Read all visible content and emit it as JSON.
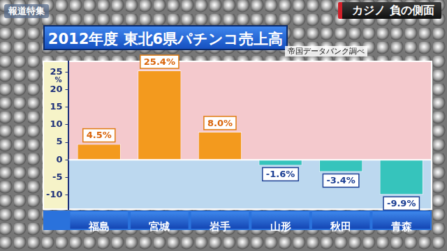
{
  "header": {
    "program": "報道特集",
    "segment": "カジノ 負の側面"
  },
  "chart_data": {
    "type": "bar",
    "title": "2012年度 東北6県パチンコ売上高",
    "source": "帝国データバンク調べ",
    "ylabel": "%",
    "categories": [
      "福島",
      "宮城",
      "岩手",
      "山形",
      "秋田",
      "青森"
    ],
    "values": [
      4.5,
      25.4,
      8.0,
      -1.6,
      -3.4,
      -9.9
    ],
    "value_labels": [
      "4.5%",
      "25.4%",
      "8.0%",
      "-1.6%",
      "-3.4%",
      "-9.9%"
    ],
    "colors": [
      "#f39a1e",
      "#f39a1e",
      "#f39a1e",
      "#36c4bc",
      "#36c4bc",
      "#36c4bc"
    ],
    "ylim": [
      -14,
      28
    ],
    "yticks": [
      -10,
      -5,
      0,
      5,
      10,
      15,
      20,
      25
    ],
    "grid": false,
    "data_labels": true
  }
}
